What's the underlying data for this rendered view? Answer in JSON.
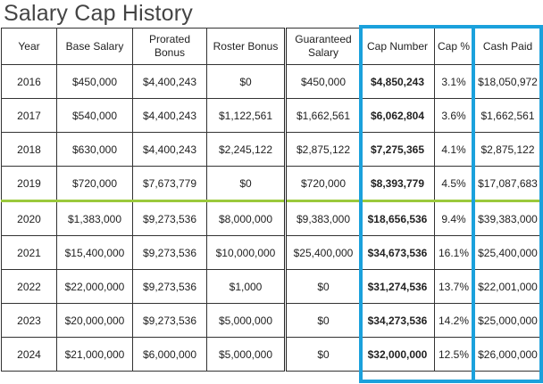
{
  "title": "Salary Cap History",
  "columns": [
    "Year",
    "Base Salary",
    "Prorated Bonus",
    "Roster Bonus",
    "Guaranteed Salary",
    "Cap Number",
    "Cap %",
    "Cash Paid"
  ],
  "rows": [
    [
      "2016",
      "$450,000",
      "$4,400,243",
      "$0",
      "$450,000",
      "$4,850,243",
      "3.1%",
      "$18,050,972"
    ],
    [
      "2017",
      "$540,000",
      "$4,400,243",
      "$1,122,561",
      "$1,662,561",
      "$6,062,804",
      "3.6%",
      "$1,662,561"
    ],
    [
      "2018",
      "$630,000",
      "$4,400,243",
      "$2,245,122",
      "$2,875,122",
      "$7,275,365",
      "4.1%",
      "$2,875,122"
    ],
    [
      "2019",
      "$720,000",
      "$7,673,779",
      "$0",
      "$720,000",
      "$8,393,779",
      "4.5%",
      "$17,087,683"
    ],
    [
      "2020",
      "$1,383,000",
      "$9,273,536",
      "$8,000,000",
      "$9,383,000",
      "$18,656,536",
      "9.4%",
      "$39,383,000"
    ],
    [
      "2021",
      "$15,400,000",
      "$9,273,536",
      "$10,000,000",
      "$25,400,000",
      "$34,673,536",
      "16.1%",
      "$25,400,000"
    ],
    [
      "2022",
      "$22,000,000",
      "$9,273,536",
      "$1,000",
      "$0",
      "$31,274,536",
      "13.7%",
      "$22,001,000"
    ],
    [
      "2023",
      "$20,000,000",
      "$9,273,536",
      "$5,000,000",
      "$0",
      "$34,273,536",
      "14.2%",
      "$25,000,000"
    ],
    [
      "2024",
      "$21,000,000",
      "$6,000,000",
      "$5,000,000",
      "$0",
      "$32,000,000",
      "12.5%",
      "$26,000,000"
    ]
  ],
  "colors": {
    "highlight_box": "#1ba1dc",
    "divider_line": "#9bc93c"
  }
}
